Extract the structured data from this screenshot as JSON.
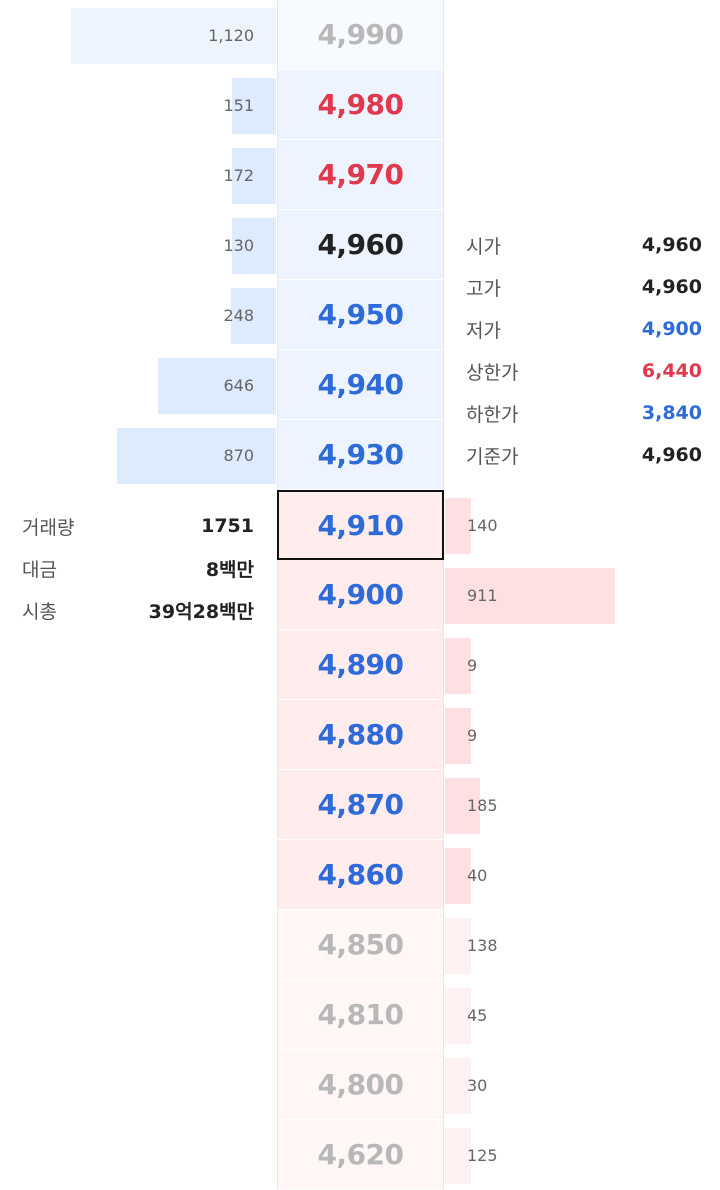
{
  "colors": {
    "up": "#e0394e",
    "down": "#2f6bd8",
    "flat": "#222222",
    "faded": "#b8b8b8",
    "ask_bar": "#deeafd",
    "bid_bar": "#ffe0e2"
  },
  "asks": [
    {
      "price": "4,990",
      "qty": "1,120",
      "qty_value": 1120,
      "tone": "faded"
    },
    {
      "price": "4,980",
      "qty": "151",
      "qty_value": 151,
      "tone": "up"
    },
    {
      "price": "4,970",
      "qty": "172",
      "qty_value": 172,
      "tone": "up"
    },
    {
      "price": "4,960",
      "qty": "130",
      "qty_value": 130,
      "tone": "flat"
    },
    {
      "price": "4,950",
      "qty": "248",
      "qty_value": 248,
      "tone": "down"
    },
    {
      "price": "4,940",
      "qty": "646",
      "qty_value": 646,
      "tone": "down"
    },
    {
      "price": "4,930",
      "qty": "870",
      "qty_value": 870,
      "tone": "down"
    }
  ],
  "bids": [
    {
      "price": "4,910",
      "qty": "140",
      "qty_value": 140,
      "tone": "down",
      "current": true
    },
    {
      "price": "4,900",
      "qty": "911",
      "qty_value": 911,
      "tone": "down"
    },
    {
      "price": "4,890",
      "qty": "9",
      "qty_value": 9,
      "tone": "down"
    },
    {
      "price": "4,880",
      "qty": "9",
      "qty_value": 9,
      "tone": "down"
    },
    {
      "price": "4,870",
      "qty": "185",
      "qty_value": 185,
      "tone": "down"
    },
    {
      "price": "4,860",
      "qty": "40",
      "qty_value": 40,
      "tone": "down"
    },
    {
      "price": "4,850",
      "qty": "138",
      "qty_value": 138,
      "tone": "faded"
    },
    {
      "price": "4,810",
      "qty": "45",
      "qty_value": 45,
      "tone": "faded"
    },
    {
      "price": "4,800",
      "qty": "30",
      "qty_value": 30,
      "tone": "faded"
    },
    {
      "price": "4,620",
      "qty": "125",
      "qty_value": 125,
      "tone": "faded"
    }
  ],
  "price_info": [
    {
      "label": "시가",
      "value": "4,960",
      "tone": "flat"
    },
    {
      "label": "고가",
      "value": "4,960",
      "tone": "flat"
    },
    {
      "label": "저가",
      "value": "4,900",
      "tone": "down"
    },
    {
      "label": "상한가",
      "value": "6,440",
      "tone": "up"
    },
    {
      "label": "하한가",
      "value": "3,840",
      "tone": "down"
    },
    {
      "label": "기준가",
      "value": "4,960",
      "tone": "flat"
    }
  ],
  "trade_info": [
    {
      "label": "거래량",
      "value": "1751"
    },
    {
      "label": "대금",
      "value": "8백만"
    },
    {
      "label": "시총",
      "value": "39억28백만"
    }
  ]
}
